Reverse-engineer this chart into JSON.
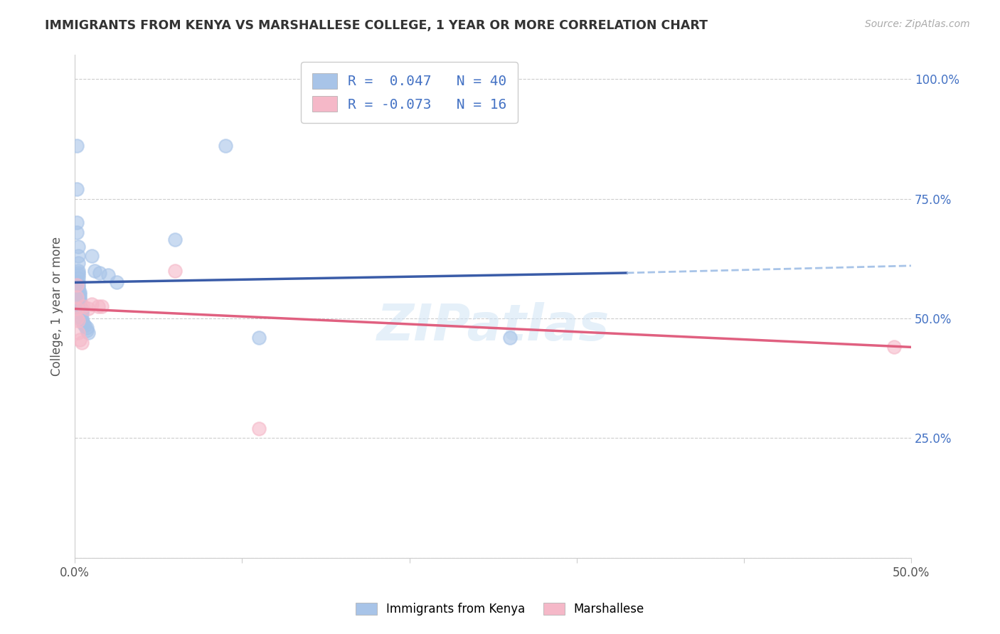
{
  "title": "IMMIGRANTS FROM KENYA VS MARSHALLESE COLLEGE, 1 YEAR OR MORE CORRELATION CHART",
  "source": "Source: ZipAtlas.com",
  "ylabel": "College, 1 year or more",
  "right_yticks": [
    "100.0%",
    "75.0%",
    "50.0%",
    "25.0%"
  ],
  "right_ytick_vals": [
    1.0,
    0.75,
    0.5,
    0.25
  ],
  "xlim": [
    0.0,
    0.5
  ],
  "ylim": [
    0.0,
    1.05
  ],
  "kenya_R": 0.047,
  "kenya_N": 40,
  "marsh_R": -0.073,
  "marsh_N": 16,
  "kenya_color": "#a8c4e8",
  "marsh_color": "#f5b8c8",
  "kenya_line_color": "#3a5ca8",
  "marsh_line_color": "#e06080",
  "kenya_line_solid": [
    [
      0.0,
      0.575
    ],
    [
      0.33,
      0.595
    ]
  ],
  "kenya_line_dash": [
    [
      0.33,
      0.595
    ],
    [
      0.5,
      0.61
    ]
  ],
  "marsh_line": [
    [
      0.0,
      0.52
    ],
    [
      0.5,
      0.44
    ]
  ],
  "kenya_scatter": [
    [
      0.001,
      0.86
    ],
    [
      0.001,
      0.77
    ],
    [
      0.001,
      0.7
    ],
    [
      0.001,
      0.68
    ],
    [
      0.002,
      0.65
    ],
    [
      0.002,
      0.63
    ],
    [
      0.002,
      0.615
    ],
    [
      0.002,
      0.6
    ],
    [
      0.002,
      0.595
    ],
    [
      0.002,
      0.59
    ],
    [
      0.002,
      0.585
    ],
    [
      0.002,
      0.575
    ],
    [
      0.002,
      0.57
    ],
    [
      0.002,
      0.565
    ],
    [
      0.002,
      0.56
    ],
    [
      0.003,
      0.555
    ],
    [
      0.003,
      0.55
    ],
    [
      0.003,
      0.545
    ],
    [
      0.003,
      0.54
    ],
    [
      0.003,
      0.535
    ],
    [
      0.003,
      0.53
    ],
    [
      0.004,
      0.52
    ],
    [
      0.004,
      0.515
    ],
    [
      0.004,
      0.51
    ],
    [
      0.004,
      0.5
    ],
    [
      0.004,
      0.495
    ],
    [
      0.005,
      0.49
    ],
    [
      0.006,
      0.485
    ],
    [
      0.007,
      0.48
    ],
    [
      0.007,
      0.475
    ],
    [
      0.008,
      0.47
    ],
    [
      0.01,
      0.63
    ],
    [
      0.012,
      0.6
    ],
    [
      0.015,
      0.595
    ],
    [
      0.02,
      0.59
    ],
    [
      0.025,
      0.575
    ],
    [
      0.06,
      0.665
    ],
    [
      0.09,
      0.86
    ],
    [
      0.11,
      0.46
    ],
    [
      0.26,
      0.46
    ]
  ],
  "marsh_scatter": [
    [
      0.001,
      0.57
    ],
    [
      0.001,
      0.545
    ],
    [
      0.001,
      0.52
    ],
    [
      0.001,
      0.5
    ],
    [
      0.002,
      0.495
    ],
    [
      0.002,
      0.47
    ],
    [
      0.003,
      0.455
    ],
    [
      0.004,
      0.45
    ],
    [
      0.005,
      0.525
    ],
    [
      0.008,
      0.52
    ],
    [
      0.01,
      0.53
    ],
    [
      0.014,
      0.525
    ],
    [
      0.016,
      0.525
    ],
    [
      0.06,
      0.6
    ],
    [
      0.11,
      0.27
    ],
    [
      0.49,
      0.44
    ]
  ],
  "watermark": "ZIPatlas",
  "legend_kenya_label": "Immigrants from Kenya",
  "legend_marsh_label": "Marshallese",
  "background_color": "#ffffff",
  "grid_color": "#cccccc"
}
